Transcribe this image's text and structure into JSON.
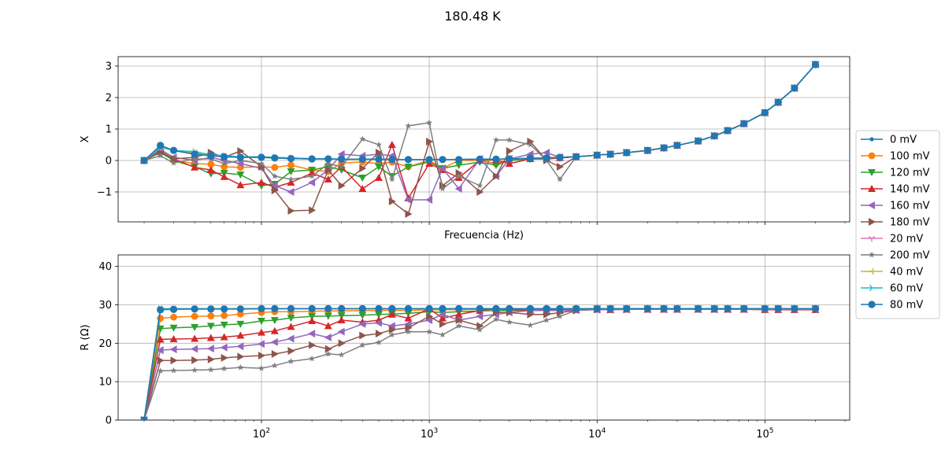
{
  "chart_data": {
    "title": "180.48 K",
    "type": "line",
    "xscale": "log",
    "legend": "center-right",
    "grid": true,
    "x_ticks": [
      "10^2",
      "10^3",
      "10^4",
      "10^5"
    ],
    "x_freq": [
      20,
      25,
      30,
      40,
      50,
      60,
      75,
      100,
      120,
      150,
      200,
      250,
      300,
      400,
      500,
      600,
      750,
      1000,
      1200,
      1500,
      2000,
      2500,
      3000,
      4000,
      5000,
      6000,
      7500,
      10000,
      12000,
      15000,
      20000,
      25000,
      30000,
      40000,
      50000,
      60000,
      75000,
      100000,
      120000,
      150000,
      200000
    ],
    "panels": [
      {
        "ylabel": "X",
        "xlabel": "Frecuencia (Hz)",
        "ylim": [
          -1.95,
          3.3
        ],
        "yticks": [
          "−1",
          "0",
          "1",
          "2",
          "3"
        ],
        "ytick_values": [
          -1,
          0,
          1,
          2,
          3
        ]
      },
      {
        "ylabel": "R (Ω)",
        "xlabel": "",
        "ylim": [
          0,
          43
        ],
        "yticks": [
          "0",
          "10",
          "20",
          "30",
          "40"
        ],
        "ytick_values": [
          0,
          10,
          20,
          30,
          40
        ]
      }
    ],
    "series": [
      {
        "name": "0 mV",
        "color": "#1f77b4",
        "marker": "point",
        "X": [
          0,
          0.42,
          0.32,
          0.2,
          0.15,
          0.12,
          0.1,
          0.1,
          0.08,
          0.06,
          0.05,
          0.05,
          0.04,
          0.04,
          0.04,
          0.03,
          0.03,
          0.03,
          0.03,
          0.03,
          0.04,
          0.04,
          0.05,
          0.07,
          0.08,
          0.1,
          0.12,
          0.17,
          0.2,
          0.25,
          0.32,
          0.4,
          0.48,
          0.62,
          0.78,
          0.95,
          1.17,
          1.52,
          1.85,
          2.3,
          3.05
        ],
        "R": [
          0,
          29,
          29,
          29,
          29,
          29,
          29,
          29,
          29,
          29,
          29,
          29,
          29,
          29,
          29,
          29,
          29,
          29,
          29,
          29,
          29,
          29,
          29,
          29,
          29,
          29,
          29,
          29,
          29,
          29,
          29,
          29,
          29,
          29,
          29,
          29,
          29,
          29,
          29,
          29,
          29
        ]
      },
      {
        "name": "100 mV",
        "color": "#ff7f0e",
        "marker": "circle",
        "X": [
          0,
          0.3,
          0.0,
          -0.1,
          -0.12,
          -0.2,
          -0.22,
          -0.2,
          -0.22,
          -0.15,
          -0.3,
          -0.35,
          -0.08,
          -0.05,
          -0.1,
          -0.05,
          -0.2,
          0.0,
          -0.25,
          0.0,
          0.0,
          -0.1,
          0.0,
          0.05,
          0.05,
          0.08,
          0.12,
          0.17,
          0.2,
          0.25,
          0.32,
          0.4,
          0.48,
          0.62,
          0.78,
          0.95,
          1.17,
          1.52,
          1.85,
          2.3,
          3.05
        ],
        "R": [
          0,
          26.5,
          26.8,
          27,
          27.1,
          27.2,
          27.6,
          28,
          28.2,
          28.2,
          28.3,
          28.4,
          28.4,
          28.5,
          28.5,
          28.6,
          28.5,
          28.7,
          28.7,
          28.7,
          28.8,
          28.8,
          28.8,
          28.8,
          28.8,
          28.9,
          28.9,
          29,
          29,
          29,
          29,
          29,
          29,
          29,
          29,
          29,
          29,
          29,
          29,
          29,
          29
        ]
      },
      {
        "name": "120 mV",
        "color": "#2ca02c",
        "marker": "tri_down",
        "X": [
          0,
          0.25,
          0.0,
          -0.2,
          -0.42,
          -0.4,
          -0.45,
          -0.8,
          -0.75,
          -0.35,
          -0.3,
          -0.2,
          -0.3,
          -0.55,
          -0.2,
          -0.5,
          -0.2,
          -0.05,
          -0.25,
          -0.15,
          -0.05,
          -0.15,
          0.0,
          0.05,
          0.05,
          0.08,
          0.12,
          0.17,
          0.2,
          0.25,
          0.32,
          0.4,
          0.48,
          0.62,
          0.78,
          0.95,
          1.17,
          1.52,
          1.85,
          2.3,
          3.05
        ],
        "R": [
          0,
          23.8,
          24,
          24.2,
          24.5,
          24.8,
          25,
          25.8,
          26,
          26.6,
          27,
          27.1,
          27.2,
          27.3,
          27.5,
          27.6,
          27.8,
          28.2,
          28,
          28.2,
          28.4,
          28.5,
          28.5,
          28.6,
          28.7,
          28.8,
          28.9,
          29,
          29,
          29,
          29,
          29,
          29,
          29,
          29,
          29,
          29,
          29,
          29,
          29,
          29
        ]
      },
      {
        "name": "140 mV",
        "color": "#d62728",
        "marker": "tri_up",
        "X": [
          0,
          0.3,
          0.05,
          -0.22,
          -0.3,
          -0.52,
          -0.78,
          -0.7,
          -0.85,
          -0.7,
          -0.4,
          -0.6,
          -0.2,
          -0.9,
          -0.55,
          0.5,
          -1.2,
          -0.1,
          -0.3,
          -0.55,
          0.0,
          0.02,
          -0.1,
          0.05,
          0.06,
          0.08,
          0.12,
          0.17,
          0.2,
          0.25,
          0.32,
          0.4,
          0.48,
          0.62,
          0.78,
          0.95,
          1.17,
          1.52,
          1.85,
          2.3,
          3.05
        ],
        "R": [
          0,
          21,
          21.1,
          21.2,
          21.4,
          21.6,
          22,
          22.8,
          23.2,
          24.3,
          25.8,
          24.5,
          26,
          25.5,
          26,
          27.5,
          26.5,
          29,
          26.5,
          27.5,
          28.5,
          29,
          28.7,
          28.6,
          28.5,
          28.6,
          28.7,
          28.8,
          28.7,
          28.8,
          28.8,
          28.8,
          28.8,
          28.8,
          28.8,
          28.8,
          28.8,
          28.7,
          28.7,
          28.7,
          28.7
        ]
      },
      {
        "name": "160 mV",
        "color": "#9467bd",
        "marker": "tri_left",
        "X": [
          0,
          0.35,
          0.1,
          0.0,
          0.1,
          0.0,
          -0.1,
          -0.25,
          -0.8,
          -1.0,
          -0.7,
          -0.3,
          0.2,
          0.15,
          0.2,
          0.15,
          -1.25,
          -1.25,
          -0.25,
          -0.9,
          0.05,
          -0.5,
          0.05,
          0.2,
          0.25,
          0.1,
          0.12,
          0.17,
          0.2,
          0.25,
          0.32,
          0.4,
          0.48,
          0.62,
          0.78,
          0.95,
          1.17,
          1.52,
          1.85,
          2.3,
          3.05
        ],
        "R": [
          0,
          18.2,
          18.4,
          18.5,
          18.6,
          18.9,
          19.2,
          19.8,
          20.3,
          21.2,
          22.5,
          21.5,
          23,
          25,
          25.3,
          24.5,
          25,
          26,
          27.5,
          26,
          27,
          27.5,
          28,
          28.5,
          28.5,
          28.5,
          28.6,
          28.7,
          28.7,
          28.8,
          28.8,
          28.8,
          28.8,
          28.8,
          28.8,
          28.8,
          28.8,
          28.8,
          28.8,
          28.8,
          28.8
        ]
      },
      {
        "name": "180 mV",
        "color": "#8c564b",
        "marker": "tri_right",
        "X": [
          0,
          0.28,
          0.05,
          0.1,
          0.25,
          0.1,
          0.3,
          -0.2,
          -0.95,
          -1.6,
          -1.58,
          -0.3,
          -0.8,
          -0.25,
          0.25,
          -1.3,
          -1.7,
          0.6,
          -0.8,
          -0.4,
          -1.0,
          -0.5,
          0.3,
          0.6,
          0.0,
          -0.2,
          0.12,
          0.17,
          0.2,
          0.25,
          0.32,
          0.4,
          0.48,
          0.62,
          0.78,
          0.95,
          1.17,
          1.52,
          1.85,
          2.3,
          3.05
        ],
        "R": [
          0,
          15.5,
          15.5,
          15.6,
          15.8,
          16.2,
          16.5,
          16.8,
          17.2,
          18,
          19.5,
          18.5,
          20,
          22,
          22.5,
          23.5,
          24,
          27,
          25,
          26,
          24.5,
          28,
          28,
          27.5,
          27.5,
          28,
          28.5,
          28.8,
          28.8,
          28.8,
          28.9,
          28.9,
          28.9,
          28.9,
          28.9,
          28.9,
          28.9,
          28.9,
          28.9,
          28.9,
          28.9
        ]
      },
      {
        "name": "20 mV",
        "color": "#e377c2",
        "marker": "tri_down_thin",
        "X": [
          0,
          0.42,
          0.32,
          0.25,
          0.15,
          0.12,
          0.1,
          0.1,
          0.08,
          0.06,
          0.05,
          0.05,
          0.04,
          0.04,
          0.04,
          0.03,
          0.03,
          0.03,
          0.03,
          0.03,
          0.04,
          0.04,
          0.05,
          0.07,
          0.08,
          0.1,
          0.12,
          0.17,
          0.2,
          0.25,
          0.32,
          0.4,
          0.48,
          0.62,
          0.78,
          0.95,
          1.17,
          1.52,
          1.85,
          2.3,
          3.05
        ],
        "R": [
          0,
          29,
          29,
          29,
          29,
          29,
          29,
          29,
          29,
          29,
          29,
          29,
          29,
          29,
          29,
          29,
          29,
          29,
          29,
          29,
          29,
          29,
          29,
          29,
          29,
          29,
          29,
          29,
          29,
          29,
          29,
          29,
          29,
          29,
          29,
          29,
          29,
          29,
          29,
          29,
          29
        ]
      },
      {
        "name": "200 mV",
        "color": "#7f7f7f",
        "marker": "star",
        "X": [
          0,
          0.15,
          -0.08,
          0.05,
          0.05,
          -0.1,
          0.0,
          -0.1,
          -0.5,
          -0.6,
          -0.5,
          -0.1,
          -0.2,
          0.68,
          0.5,
          -0.6,
          1.1,
          1.2,
          -0.9,
          -0.5,
          -0.8,
          0.65,
          0.65,
          0.5,
          0.0,
          -0.6,
          0.12,
          0.17,
          0.2,
          0.25,
          0.32,
          0.4,
          0.48,
          0.62,
          0.78,
          0.95,
          1.17,
          1.52,
          1.85,
          2.3,
          3.05
        ],
        "R": [
          0,
          12.8,
          12.9,
          13,
          13.1,
          13.4,
          13.7,
          13.5,
          14.2,
          15.3,
          16,
          17.2,
          17,
          19.5,
          20.2,
          22.2,
          23,
          23,
          22.2,
          24.5,
          23.5,
          26.2,
          25.5,
          24.7,
          26,
          27,
          28.5,
          28.8,
          28.8,
          28.8,
          28.8,
          28.8,
          28.8,
          28.8,
          28.8,
          28.8,
          28.8,
          28.8,
          28.8,
          28.8,
          28.8
        ]
      },
      {
        "name": "40 mV",
        "color": "#bcbd22",
        "marker": "tri_left_thin",
        "X": [
          0,
          0.42,
          0.32,
          0.25,
          0.15,
          0.12,
          0.1,
          0.1,
          0.08,
          0.06,
          0.05,
          0.05,
          0.04,
          0.04,
          0.04,
          0.03,
          0.03,
          0.03,
          0.03,
          0.03,
          0.04,
          0.04,
          0.05,
          0.07,
          0.08,
          0.1,
          0.12,
          0.17,
          0.2,
          0.25,
          0.32,
          0.4,
          0.48,
          0.62,
          0.78,
          0.95,
          1.17,
          1.52,
          1.85,
          2.3,
          3.05
        ],
        "R": [
          0,
          29,
          29,
          29,
          29,
          29,
          29,
          29,
          29,
          29,
          29,
          29,
          29,
          29,
          29,
          29,
          29,
          29,
          29,
          29,
          29,
          29,
          29,
          29,
          29,
          29,
          29,
          29,
          29,
          29,
          29,
          29,
          29,
          29,
          29,
          29,
          29,
          29,
          29,
          29,
          29
        ]
      },
      {
        "name": "60 mV",
        "color": "#17becf",
        "marker": "tri_right_thin",
        "X": [
          0,
          0.42,
          0.32,
          0.28,
          0.18,
          0.15,
          0.12,
          0.12,
          0.1,
          0.08,
          0.06,
          0.05,
          0.04,
          0.04,
          0.04,
          0.03,
          0.03,
          0.03,
          0.03,
          0.03,
          0.04,
          0.04,
          0.05,
          0.07,
          0.08,
          0.1,
          0.12,
          0.17,
          0.2,
          0.25,
          0.32,
          0.4,
          0.48,
          0.62,
          0.78,
          0.95,
          1.17,
          1.52,
          1.85,
          2.3,
          3.05
        ],
        "R": [
          0,
          29,
          29,
          29,
          29,
          29,
          29,
          29,
          29,
          29,
          29,
          29,
          29,
          29,
          29,
          29,
          29,
          29,
          29,
          29,
          29,
          29,
          29,
          29,
          29,
          29,
          29,
          29,
          29,
          29,
          29,
          29,
          29,
          29,
          29,
          29,
          29,
          29,
          29,
          29,
          29
        ]
      },
      {
        "name": "80 mV",
        "color": "#1f77b4",
        "marker": "circle_big",
        "X": [
          0,
          0.48,
          0.32,
          0.2,
          0.15,
          0.12,
          0.1,
          0.1,
          0.08,
          0.06,
          0.05,
          0.05,
          0.04,
          0.04,
          0.04,
          0.03,
          0.03,
          0.03,
          0.03,
          0.03,
          0.04,
          0.04,
          0.05,
          0.07,
          0.08,
          0.1,
          0.12,
          0.17,
          0.2,
          0.25,
          0.32,
          0.4,
          0.48,
          0.62,
          0.78,
          0.95,
          1.17,
          1.52,
          1.85,
          2.3,
          3.05
        ],
        "R": [
          0,
          28.7,
          28.8,
          28.9,
          28.9,
          28.9,
          28.9,
          29,
          29,
          29,
          29,
          29,
          29,
          29,
          29,
          29,
          29,
          29,
          29,
          29,
          29,
          29,
          29,
          29,
          29,
          29,
          29,
          29,
          29,
          29,
          29,
          29,
          29,
          29,
          29,
          29,
          29,
          29,
          29,
          29,
          29
        ]
      }
    ]
  }
}
